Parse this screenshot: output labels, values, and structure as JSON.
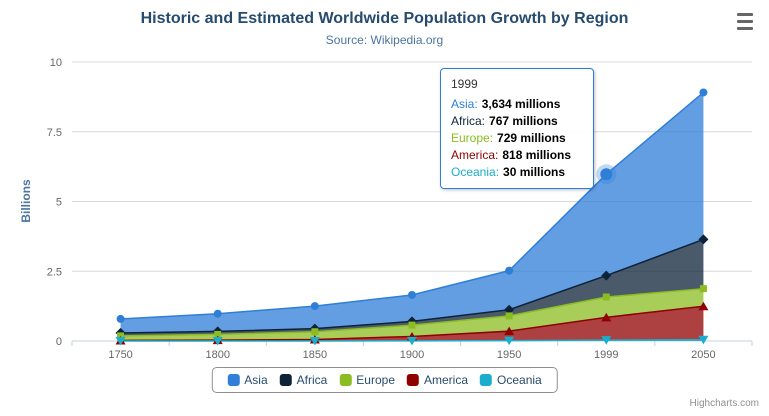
{
  "chart_data": {
    "type": "area",
    "stacked": true,
    "title": "Historic and Estimated Worldwide Population Growth by Region",
    "subtitle": "Source: Wikipedia.org",
    "ylabel": "Billions",
    "xlabel": "",
    "ylim": [
      0,
      10
    ],
    "y_ticks": [
      0,
      2.5,
      5,
      7.5,
      10
    ],
    "categories": [
      "1750",
      "1800",
      "1850",
      "1900",
      "1950",
      "1999",
      "2050"
    ],
    "unit": "millions",
    "grid": true,
    "legend_position": "bottom",
    "stack_order": "last-series-at-bottom",
    "series": [
      {
        "name": "Asia",
        "color": "#2f7ed8",
        "marker": "circle",
        "values": [
          502,
          635,
          809,
          947,
          1402,
          3634,
          5268
        ]
      },
      {
        "name": "Africa",
        "color": "#0d233a",
        "marker": "diamond",
        "values": [
          106,
          107,
          111,
          133,
          221,
          767,
          1766
        ]
      },
      {
        "name": "Europe",
        "color": "#8bbc21",
        "marker": "square",
        "values": [
          163,
          203,
          276,
          408,
          547,
          729,
          628
        ]
      },
      {
        "name": "America",
        "color": "#910000",
        "marker": "triangle",
        "values": [
          18,
          31,
          54,
          156,
          339,
          818,
          1201
        ]
      },
      {
        "name": "Oceania",
        "color": "#1aadce",
        "marker": "triangle-down",
        "values": [
          2,
          2,
          2,
          6,
          13,
          30,
          46
        ]
      }
    ]
  },
  "tooltip": {
    "header": "1999",
    "rows": [
      {
        "label": "Asia:",
        "value": "3,634 millions"
      },
      {
        "label": "Africa:",
        "value": "767 millions"
      },
      {
        "label": "Europe:",
        "value": "729 millions"
      },
      {
        "label": "America:",
        "value": "818 millions"
      },
      {
        "label": "Oceania:",
        "value": "30 millions"
      }
    ]
  },
  "hover": {
    "series": "Asia",
    "category": "1999"
  },
  "credits": "Highcharts.com"
}
